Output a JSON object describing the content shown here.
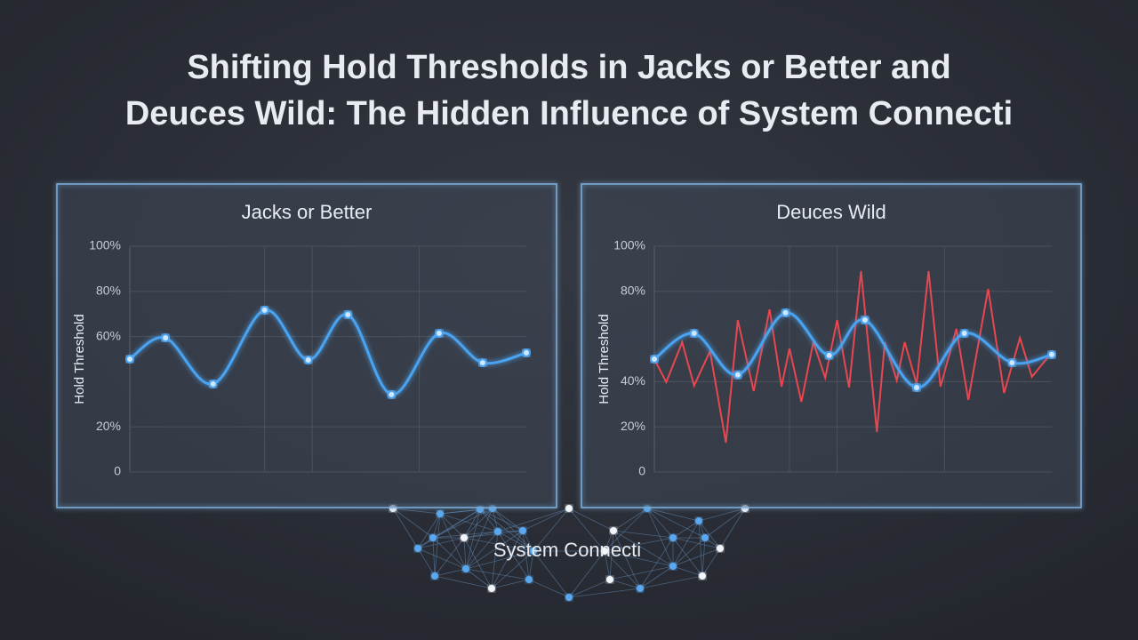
{
  "title_lines": [
    "Shifting Hold Thresholds in Jacks or Better and",
    "Deuces Wild: The Hidden Influence of System Connecti"
  ],
  "network": {
    "label": "System Connecti"
  },
  "chart_data": [
    {
      "type": "line",
      "title": "Jacks or Better",
      "y_label": "Hold Threshold",
      "xlim": [
        0,
        100
      ],
      "ylim": [
        0,
        100
      ],
      "yticks": [
        0,
        {
          "value": 20,
          "label": "20%"
        },
        {
          "value": 60,
          "label": "60%"
        },
        {
          "value": 80,
          "label": "80%"
        },
        {
          "value": 100,
          "label": "100%"
        }
      ],
      "grid": true,
      "series": [
        {
          "color": "#4aa3f0",
          "smooth": true,
          "x": [
            0,
            9,
            21,
            34,
            45,
            55,
            66,
            78,
            89,
            100
          ],
          "values": [
            50,
            59.4,
            39,
            71.7,
            49.6,
            69.7,
            34.3,
            61.4,
            48.4,
            52.8
          ]
        }
      ]
    },
    {
      "type": "line",
      "title": "Deuces Wild",
      "y_label": "Hold Threshold",
      "xlim": [
        0,
        100
      ],
      "ylim": [
        0,
        100
      ],
      "yticks": [
        0,
        {
          "value": 20,
          "label": "20%"
        },
        {
          "value": 40,
          "label": "40%"
        },
        {
          "value": 80,
          "label": "80%"
        },
        {
          "value": 100,
          "label": "100%"
        }
      ],
      "grid": true,
      "series": [
        {
          "color": "#e8474f",
          "smooth": false,
          "x": [
            0,
            3,
            7,
            10,
            14,
            18,
            21,
            25,
            29,
            32,
            34,
            37,
            40,
            43,
            46,
            49,
            52,
            56,
            58,
            61,
            63,
            66,
            69,
            72,
            76,
            79,
            84,
            88,
            92,
            95,
            99
          ],
          "values": [
            50,
            39.8,
            57.5,
            38.2,
            53.5,
            13,
            67.3,
            35.8,
            72,
            37.8,
            54.7,
            31.1,
            57.5,
            41.7,
            67.3,
            37.4,
            89,
            17.7,
            57.5,
            40.6,
            57.5,
            39,
            89,
            37.8,
            63.4,
            31.9,
            81.1,
            35,
            59.4,
            42.1,
            50.8
          ]
        },
        {
          "color": "#4aa3f0",
          "smooth": true,
          "x": [
            0,
            10,
            21,
            33,
            44,
            53,
            66,
            78,
            90,
            100
          ],
          "values": [
            50,
            61.4,
            43,
            70.5,
            51.6,
            67.3,
            37.4,
            61.4,
            48.4,
            52
          ]
        }
      ]
    }
  ]
}
